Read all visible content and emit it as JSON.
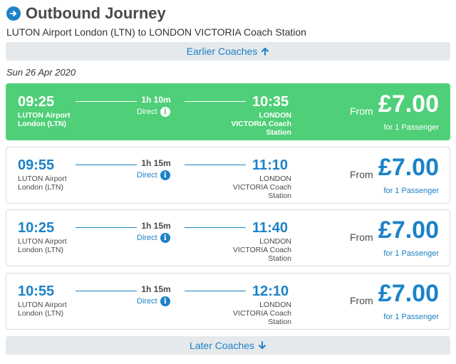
{
  "header": {
    "title": "Outbound Journey",
    "title_icon": "arrow-right-circle-icon",
    "subtitle": "LUTON Airport London (LTN) to LONDON VICTORIA Coach Station"
  },
  "earlier_button": {
    "label": "Earlier Coaches",
    "icon": "arrow-up-icon"
  },
  "later_button": {
    "label": "Later Coaches",
    "icon": "arrow-down-icon"
  },
  "date": "Sun 26 Apr 2020",
  "colors": {
    "accent": "#1c82c7",
    "selected": "#4fcf78",
    "bar": "#e6e9ec"
  },
  "journeys": [
    {
      "dep_time": "09:25",
      "dep_station_1": "LUTON Airport",
      "dep_station_2": "London (LTN)",
      "duration": "1h 10m",
      "type": "Direct",
      "arr_time": "10:35",
      "arr_station_1": "LONDON",
      "arr_station_2": "VICTORIA Coach",
      "arr_station_3": "Station",
      "from_label": "From",
      "price": "£7.00",
      "passengers": "for 1 Passenger",
      "selected": true
    },
    {
      "dep_time": "09:55",
      "dep_station_1": "LUTON Airport",
      "dep_station_2": "London (LTN)",
      "duration": "1h 15m",
      "type": "Direct",
      "arr_time": "11:10",
      "arr_station_1": "LONDON",
      "arr_station_2": "VICTORIA Coach",
      "arr_station_3": "Station",
      "from_label": "From",
      "price": "£7.00",
      "passengers": "for 1 Passenger",
      "selected": false
    },
    {
      "dep_time": "10:25",
      "dep_station_1": "LUTON Airport",
      "dep_station_2": "London (LTN)",
      "duration": "1h 15m",
      "type": "Direct",
      "arr_time": "11:40",
      "arr_station_1": "LONDON",
      "arr_station_2": "VICTORIA Coach",
      "arr_station_3": "Station",
      "from_label": "From",
      "price": "£7.00",
      "passengers": "for 1 Passenger",
      "selected": false
    },
    {
      "dep_time": "10:55",
      "dep_station_1": "LUTON Airport",
      "dep_station_2": "London (LTN)",
      "duration": "1h 15m",
      "type": "Direct",
      "arr_time": "12:10",
      "arr_station_1": "LONDON",
      "arr_station_2": "VICTORIA Coach",
      "arr_station_3": "Station",
      "from_label": "From",
      "price": "£7.00",
      "passengers": "for 1 Passenger",
      "selected": false
    }
  ]
}
